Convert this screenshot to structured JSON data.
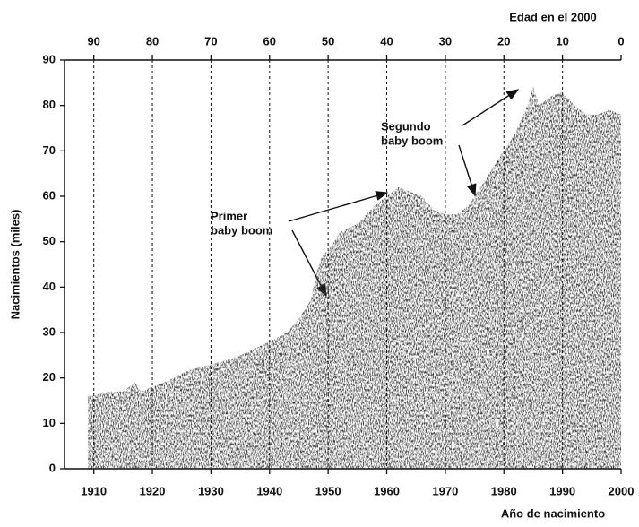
{
  "chart_data": {
    "type": "area",
    "xlabel": "Año de nacimiento",
    "ylabel": "Nacimientos (miles)",
    "x2label": "Edad en el 2000",
    "x": [
      1909,
      1910,
      1912,
      1915,
      1917,
      1918,
      1920,
      1922,
      1925,
      1927,
      1930,
      1933,
      1935,
      1940,
      1943,
      1945,
      1947,
      1948,
      1949,
      1950,
      1952,
      1955,
      1958,
      1960,
      1962,
      1964,
      1966,
      1968,
      1970,
      1972,
      1974,
      1975,
      1977,
      1979,
      1980,
      1982,
      1984,
      1985,
      1986,
      1988,
      1990,
      1992,
      1994,
      1996,
      1998,
      2000
    ],
    "values": [
      16,
      16,
      17,
      17,
      19,
      17,
      18,
      19,
      21,
      22,
      23,
      24,
      25,
      28,
      30,
      33,
      37,
      43,
      47,
      48,
      52,
      54,
      58,
      60,
      62,
      61,
      60,
      57,
      56,
      56,
      58,
      60,
      64,
      68,
      70,
      74,
      80,
      84,
      80,
      82,
      83,
      80,
      78,
      78,
      79,
      78
    ],
    "color": "#3c3c3c",
    "xlim": [
      1905,
      2000
    ],
    "xticks": [
      1910,
      1920,
      1930,
      1940,
      1950,
      1960,
      1970,
      1980,
      1990,
      2000
    ],
    "x2lim": [
      95,
      0
    ],
    "x2ticks": [
      90,
      80,
      70,
      60,
      50,
      40,
      30,
      20,
      10,
      0
    ],
    "ylim": [
      0,
      90
    ],
    "yticks": [
      0,
      10,
      20,
      30,
      40,
      50,
      60,
      70,
      80,
      90
    ],
    "grid": true,
    "annotations": [
      {
        "lines": [
          "Primer",
          "baby boom"
        ]
      },
      {
        "lines": [
          "Segundo",
          "baby boom"
        ]
      }
    ]
  }
}
